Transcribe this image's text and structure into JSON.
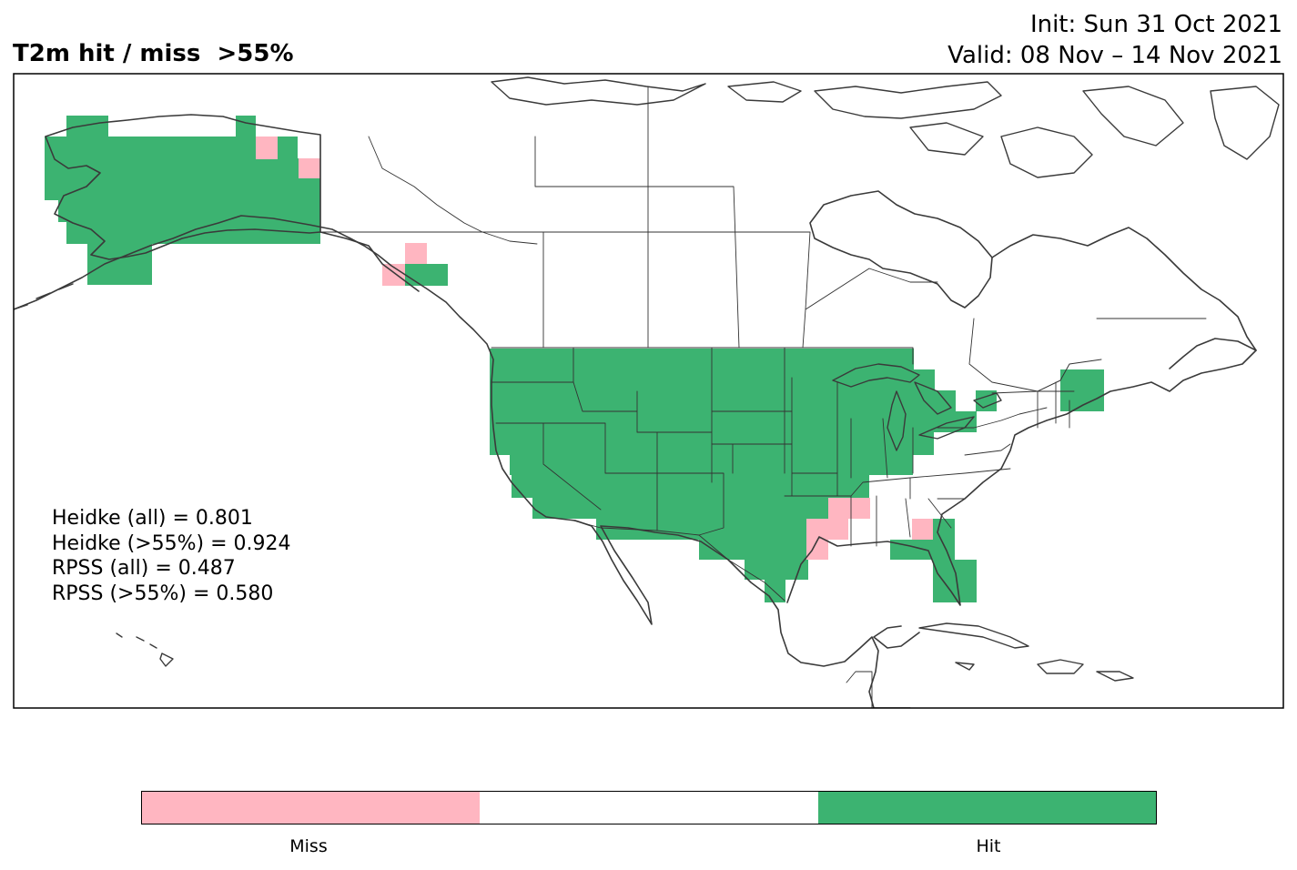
{
  "title": "T2m hit / miss  >55%",
  "init": "Init: Sun 31 Oct 2021",
  "valid": "Valid: 08 Nov – 14 Nov 2021",
  "stats": [
    "Heidke (all) = 0.801",
    "Heidke (>55%) = 0.924",
    "RPSS (all) = 0.487",
    "RPSS (>55%) = 0.580"
  ],
  "colorbar": {
    "labels": [
      "Miss",
      "Hit"
    ],
    "colors": [
      "#ffb6c1",
      "#ffffff",
      "#3cb371"
    ]
  },
  "colors": {
    "hit": "#3cb371",
    "miss": "#ffb6c1",
    "coast": "#3a3a3a",
    "border": "#333333"
  }
}
